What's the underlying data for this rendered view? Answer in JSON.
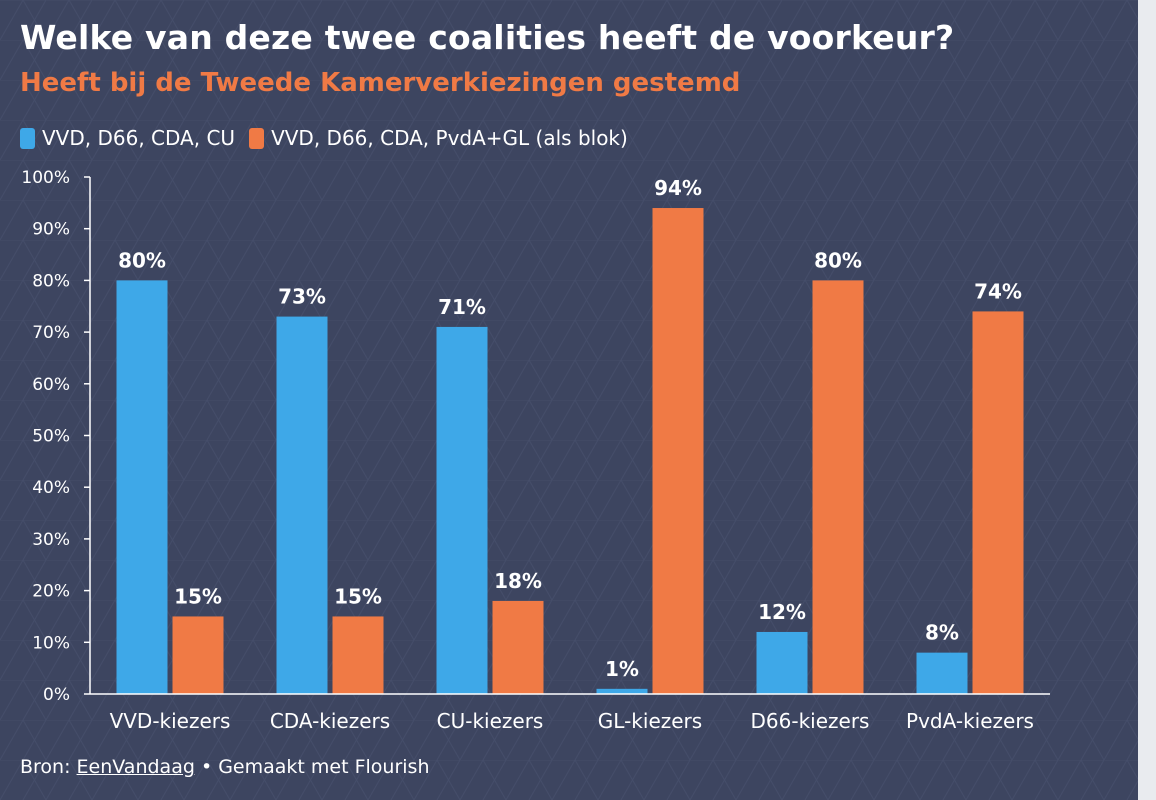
{
  "title": "Welke van deze twee coalities heeft de voorkeur?",
  "subtitle": "Heeft bij de Tweede Kamerverkiezingen gestemd",
  "colors": {
    "background": "#3d4560",
    "series1": "#3ea8e8",
    "series2": "#f07a45",
    "text": "#ffffff"
  },
  "footer": {
    "prefix": "Bron: ",
    "source": "EenVandaag",
    "suffix": " • Gemaakt met Flourish"
  },
  "chart_data": {
    "type": "bar",
    "title": "Welke van deze twee coalities heeft de voorkeur?",
    "subtitle": "Heeft bij de Tweede Kamerverkiezingen gestemd",
    "categories": [
      "VVD-kiezers",
      "CDA-kiezers",
      "CU-kiezers",
      "GL-kiezers",
      "D66-kiezers",
      "PvdA-kiezers"
    ],
    "series": [
      {
        "name": "VVD, D66, CDA, CU",
        "color": "#3ea8e8",
        "values": [
          80,
          73,
          71,
          1,
          12,
          8
        ]
      },
      {
        "name": "VVD, D66, CDA, PvdA+GL (als blok)",
        "color": "#f07a45",
        "values": [
          15,
          15,
          18,
          94,
          80,
          74
        ]
      }
    ],
    "yticks": [
      "0%",
      "10%",
      "20%",
      "30%",
      "40%",
      "50%",
      "60%",
      "70%",
      "80%",
      "90%",
      "100%"
    ],
    "ylim": [
      0,
      100
    ],
    "value_suffix": "%",
    "xlabel": "",
    "ylabel": "",
    "legend_position": "top-left",
    "grid": false
  }
}
